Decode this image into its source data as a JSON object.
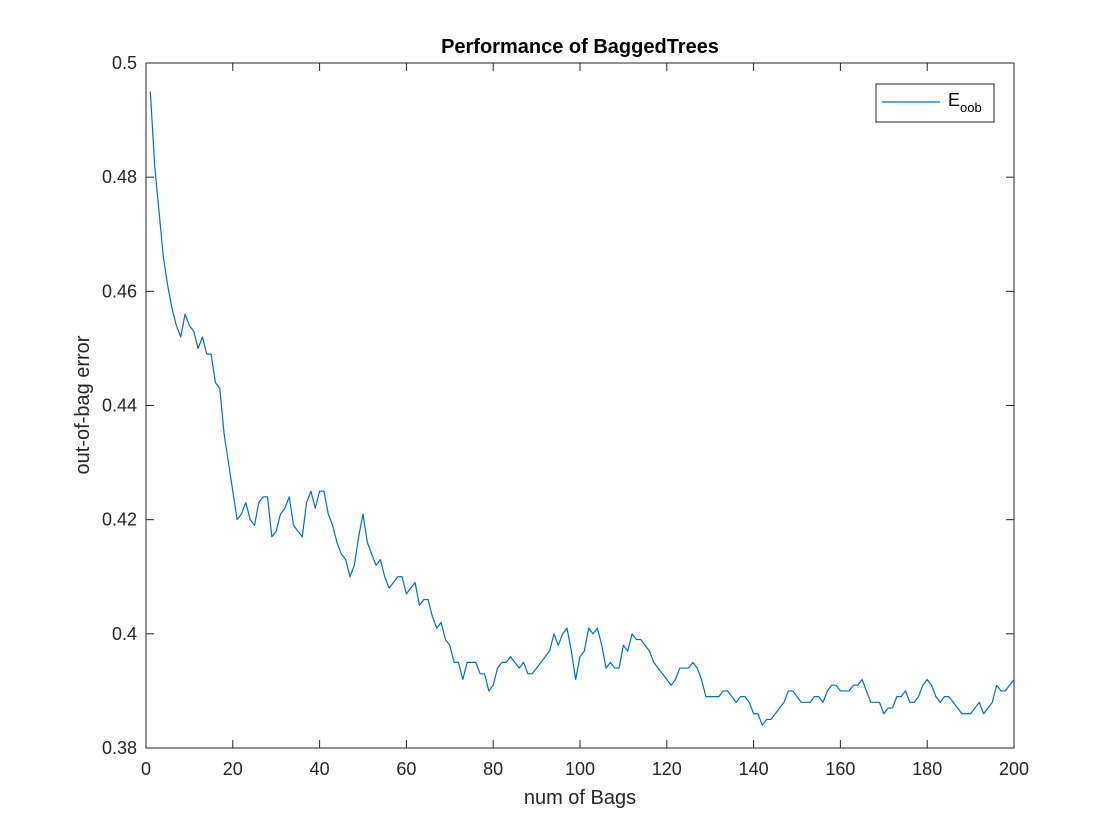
{
  "chart_data": {
    "type": "line",
    "title": "Performance of BaggedTrees",
    "xlabel": "num of Bags",
    "ylabel": "out-of-bag error",
    "xlim": [
      0,
      200
    ],
    "ylim": [
      0.38,
      0.5
    ],
    "xticks": [
      "0",
      "20",
      "40",
      "60",
      "80",
      "100",
      "120",
      "140",
      "160",
      "180",
      "200"
    ],
    "yticks": [
      "0.38",
      "0.4",
      "0.42",
      "0.44",
      "0.46",
      "0.48",
      "0.5"
    ],
    "grid": false,
    "legend": {
      "position": "top-right",
      "label_main": "E",
      "label_sub": "oob"
    },
    "series": [
      {
        "name": "E_oob",
        "color": "#0072bd",
        "points": [
          [
            1,
            0.495
          ],
          [
            2,
            0.482
          ],
          [
            3,
            0.474
          ],
          [
            4,
            0.466
          ],
          [
            5,
            0.461
          ],
          [
            6,
            0.457
          ],
          [
            7,
            0.454
          ],
          [
            8,
            0.452
          ],
          [
            9,
            0.456
          ],
          [
            10,
            0.454
          ],
          [
            11,
            0.453
          ],
          [
            12,
            0.45
          ],
          [
            13,
            0.452
          ],
          [
            14,
            0.449
          ],
          [
            15,
            0.449
          ],
          [
            16,
            0.444
          ],
          [
            17,
            0.443
          ],
          [
            18,
            0.435
          ],
          [
            19,
            0.43
          ],
          [
            20,
            0.425
          ],
          [
            21,
            0.42
          ],
          [
            22,
            0.421
          ],
          [
            23,
            0.423
          ],
          [
            24,
            0.42
          ],
          [
            25,
            0.419
          ],
          [
            26,
            0.423
          ],
          [
            27,
            0.424
          ],
          [
            28,
            0.424
          ],
          [
            29,
            0.417
          ],
          [
            30,
            0.418
          ],
          [
            31,
            0.421
          ],
          [
            32,
            0.422
          ],
          [
            33,
            0.424
          ],
          [
            34,
            0.419
          ],
          [
            35,
            0.418
          ],
          [
            36,
            0.417
          ],
          [
            37,
            0.423
          ],
          [
            38,
            0.425
          ],
          [
            39,
            0.422
          ],
          [
            40,
            0.425
          ],
          [
            41,
            0.425
          ],
          [
            42,
            0.421
          ],
          [
            43,
            0.419
          ],
          [
            44,
            0.416
          ],
          [
            45,
            0.414
          ],
          [
            46,
            0.413
          ],
          [
            47,
            0.41
          ],
          [
            48,
            0.412
          ],
          [
            49,
            0.417
          ],
          [
            50,
            0.421
          ],
          [
            51,
            0.416
          ],
          [
            52,
            0.414
          ],
          [
            53,
            0.412
          ],
          [
            54,
            0.413
          ],
          [
            55,
            0.41
          ],
          [
            56,
            0.408
          ],
          [
            57,
            0.409
          ],
          [
            58,
            0.41
          ],
          [
            59,
            0.41
          ],
          [
            60,
            0.407
          ],
          [
            61,
            0.408
          ],
          [
            62,
            0.409
          ],
          [
            63,
            0.405
          ],
          [
            64,
            0.406
          ],
          [
            65,
            0.406
          ],
          [
            66,
            0.403
          ],
          [
            67,
            0.401
          ],
          [
            68,
            0.402
          ],
          [
            69,
            0.399
          ],
          [
            70,
            0.398
          ],
          [
            71,
            0.395
          ],
          [
            72,
            0.395
          ],
          [
            73,
            0.392
          ],
          [
            74,
            0.395
          ],
          [
            75,
            0.395
          ],
          [
            76,
            0.395
          ],
          [
            77,
            0.393
          ],
          [
            78,
            0.393
          ],
          [
            79,
            0.39
          ],
          [
            80,
            0.391
          ],
          [
            81,
            0.394
          ],
          [
            82,
            0.395
          ],
          [
            83,
            0.395
          ],
          [
            84,
            0.396
          ],
          [
            85,
            0.395
          ],
          [
            86,
            0.394
          ],
          [
            87,
            0.395
          ],
          [
            88,
            0.393
          ],
          [
            89,
            0.393
          ],
          [
            90,
            0.394
          ],
          [
            91,
            0.395
          ],
          [
            92,
            0.396
          ],
          [
            93,
            0.397
          ],
          [
            94,
            0.4
          ],
          [
            95,
            0.398
          ],
          [
            96,
            0.4
          ],
          [
            97,
            0.401
          ],
          [
            98,
            0.397
          ],
          [
            99,
            0.392
          ],
          [
            100,
            0.396
          ],
          [
            101,
            0.397
          ],
          [
            102,
            0.401
          ],
          [
            103,
            0.4
          ],
          [
            104,
            0.401
          ],
          [
            105,
            0.398
          ],
          [
            106,
            0.394
          ],
          [
            107,
            0.395
          ],
          [
            108,
            0.394
          ],
          [
            109,
            0.394
          ],
          [
            110,
            0.398
          ],
          [
            111,
            0.397
          ],
          [
            112,
            0.4
          ],
          [
            113,
            0.399
          ],
          [
            114,
            0.399
          ],
          [
            115,
            0.398
          ],
          [
            116,
            0.397
          ],
          [
            117,
            0.395
          ],
          [
            118,
            0.394
          ],
          [
            119,
            0.393
          ],
          [
            120,
            0.392
          ],
          [
            121,
            0.391
          ],
          [
            122,
            0.392
          ],
          [
            123,
            0.394
          ],
          [
            124,
            0.394
          ],
          [
            125,
            0.394
          ],
          [
            126,
            0.395
          ],
          [
            127,
            0.394
          ],
          [
            128,
            0.392
          ],
          [
            129,
            0.389
          ],
          [
            130,
            0.389
          ],
          [
            131,
            0.389
          ],
          [
            132,
            0.389
          ],
          [
            133,
            0.39
          ],
          [
            134,
            0.39
          ],
          [
            135,
            0.389
          ],
          [
            136,
            0.388
          ],
          [
            137,
            0.389
          ],
          [
            138,
            0.389
          ],
          [
            139,
            0.388
          ],
          [
            140,
            0.386
          ],
          [
            141,
            0.386
          ],
          [
            142,
            0.384
          ],
          [
            143,
            0.385
          ],
          [
            144,
            0.385
          ],
          [
            145,
            0.386
          ],
          [
            146,
            0.387
          ],
          [
            147,
            0.388
          ],
          [
            148,
            0.39
          ],
          [
            149,
            0.39
          ],
          [
            150,
            0.389
          ],
          [
            151,
            0.388
          ],
          [
            152,
            0.388
          ],
          [
            153,
            0.388
          ],
          [
            154,
            0.389
          ],
          [
            155,
            0.389
          ],
          [
            156,
            0.388
          ],
          [
            157,
            0.39
          ],
          [
            158,
            0.391
          ],
          [
            159,
            0.391
          ],
          [
            160,
            0.39
          ],
          [
            161,
            0.39
          ],
          [
            162,
            0.39
          ],
          [
            163,
            0.391
          ],
          [
            164,
            0.391
          ],
          [
            165,
            0.392
          ],
          [
            166,
            0.39
          ],
          [
            167,
            0.388
          ],
          [
            168,
            0.388
          ],
          [
            169,
            0.388
          ],
          [
            170,
            0.386
          ],
          [
            171,
            0.387
          ],
          [
            172,
            0.387
          ],
          [
            173,
            0.389
          ],
          [
            174,
            0.389
          ],
          [
            175,
            0.39
          ],
          [
            176,
            0.388
          ],
          [
            177,
            0.388
          ],
          [
            178,
            0.389
          ],
          [
            179,
            0.391
          ],
          [
            180,
            0.392
          ],
          [
            181,
            0.391
          ],
          [
            182,
            0.389
          ],
          [
            183,
            0.388
          ],
          [
            184,
            0.389
          ],
          [
            185,
            0.389
          ],
          [
            186,
            0.388
          ],
          [
            187,
            0.387
          ],
          [
            188,
            0.386
          ],
          [
            189,
            0.386
          ],
          [
            190,
            0.386
          ],
          [
            191,
            0.387
          ],
          [
            192,
            0.388
          ],
          [
            193,
            0.386
          ],
          [
            194,
            0.387
          ],
          [
            195,
            0.388
          ],
          [
            196,
            0.391
          ],
          [
            197,
            0.39
          ],
          [
            198,
            0.39
          ],
          [
            199,
            0.391
          ],
          [
            200,
            0.392
          ]
        ]
      }
    ]
  }
}
